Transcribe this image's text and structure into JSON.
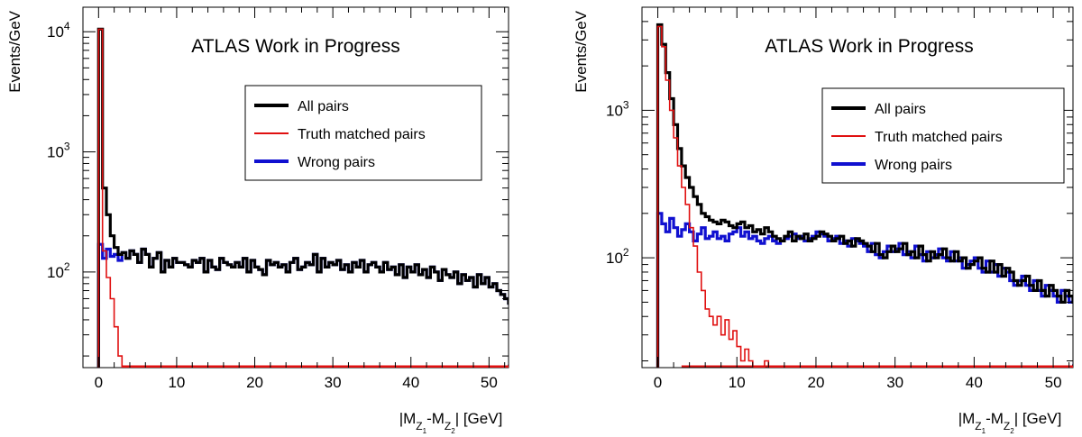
{
  "chart_data": [
    {
      "type": "step",
      "title": "ATLAS Work in Progress",
      "xlabel": "|M_{Z1}-M_{Z2}| [GeV]",
      "ylabel": "Events/GeV",
      "xlim": [
        -2,
        52.5
      ],
      "ylim": [
        16,
        16000
      ],
      "yscale": "log",
      "xticks": [
        0,
        10,
        20,
        30,
        40,
        50
      ],
      "yticks": [
        {
          "value": 100,
          "label": "10^2"
        },
        {
          "value": 1000,
          "label": "10^3"
        },
        {
          "value": 10000,
          "label": "10^4"
        }
      ],
      "bin_width": 0.5,
      "bin_start": 0,
      "legend_position": "upper-right",
      "series": [
        {
          "name": "All pairs",
          "color": "#000000",
          "values": [
            10500,
            500,
            300,
            200,
            160,
            140,
            145,
            130,
            150,
            140,
            120,
            155,
            140,
            110,
            130,
            145,
            100,
            125,
            110,
            130,
            120,
            120,
            115,
            110,
            125,
            120,
            130,
            100,
            125,
            110,
            105,
            130,
            120,
            115,
            110,
            120,
            110,
            130,
            100,
            125,
            110,
            105,
            95,
            125,
            115,
            120,
            110,
            115,
            100,
            120,
            130,
            105,
            110,
            120,
            115,
            140,
            100,
            130,
            110,
            120,
            115,
            125,
            105,
            115,
            100,
            120,
            110,
            125,
            100,
            115,
            120,
            110,
            100,
            120,
            105,
            110,
            95,
            115,
            90,
            110,
            100,
            115,
            95,
            105,
            90,
            110,
            100,
            85,
            105,
            95,
            90,
            100,
            80,
            95,
            85,
            90,
            75,
            95,
            80,
            90,
            75,
            80,
            70,
            65,
            60,
            55,
            40,
            45,
            40,
            50
          ]
        },
        {
          "name": "Truth matched pairs",
          "color": "#e01010",
          "values": [
            10500,
            150,
            90,
            60,
            35,
            20,
            0,
            0,
            0,
            0,
            0,
            0,
            0,
            0,
            0,
            0,
            0,
            0,
            0,
            0,
            0,
            0,
            0,
            0,
            0,
            0,
            0,
            0,
            0,
            0,
            0,
            0,
            0,
            0,
            0,
            0,
            0,
            0,
            0,
            0,
            0,
            0,
            0,
            0,
            0,
            0,
            0,
            0,
            0,
            0,
            0,
            0,
            0,
            0,
            0,
            0,
            0,
            0,
            0,
            0,
            0,
            0,
            0,
            0,
            0,
            0,
            0,
            0,
            0,
            0,
            0,
            0,
            0,
            0,
            0,
            0,
            0,
            0,
            0,
            0,
            0,
            0,
            0,
            0,
            0,
            0,
            0,
            0,
            0,
            0,
            0,
            0,
            0,
            0,
            0,
            0,
            0,
            0,
            0,
            0,
            0,
            0,
            0,
            0,
            0,
            0,
            0,
            0,
            0,
            0
          ]
        },
        {
          "name": "Wrong pairs",
          "color": "#1010d0",
          "values": [
            170,
            130,
            155,
            135,
            140,
            125,
            145,
            130,
            150,
            140,
            120,
            155,
            140,
            110,
            130,
            145,
            100,
            125,
            110,
            130,
            120,
            120,
            115,
            110,
            125,
            120,
            130,
            100,
            125,
            110,
            105,
            130,
            120,
            115,
            110,
            120,
            110,
            130,
            100,
            125,
            110,
            105,
            95,
            125,
            115,
            120,
            110,
            115,
            100,
            120,
            130,
            105,
            110,
            120,
            115,
            140,
            100,
            130,
            110,
            120,
            115,
            125,
            105,
            115,
            100,
            120,
            110,
            125,
            100,
            115,
            120,
            110,
            100,
            120,
            105,
            110,
            95,
            115,
            90,
            110,
            100,
            115,
            95,
            105,
            90,
            110,
            100,
            85,
            105,
            95,
            90,
            100,
            80,
            95,
            85,
            90,
            75,
            95,
            80,
            90,
            75,
            80,
            70,
            65,
            60,
            55,
            40,
            45,
            40,
            50
          ]
        }
      ]
    },
    {
      "type": "step",
      "title": "ATLAS Work in Progress",
      "xlabel": "|M_{Z1}-M_{Z2}| [GeV]",
      "ylabel": "Events/GeV",
      "xlim": [
        -2,
        52.5
      ],
      "ylim": [
        18,
        5000
      ],
      "yscale": "log",
      "xticks": [
        0,
        10,
        20,
        30,
        40,
        50
      ],
      "yticks": [
        {
          "value": 100,
          "label": "10^2"
        },
        {
          "value": 1000,
          "label": "10^3"
        }
      ],
      "bin_width": 0.5,
      "bin_start": 0,
      "legend_position": "upper-right",
      "series": [
        {
          "name": "All pairs",
          "color": "#000000",
          "values": [
            3800,
            2800,
            1800,
            1200,
            800,
            550,
            420,
            350,
            300,
            260,
            230,
            200,
            190,
            180,
            175,
            170,
            180,
            175,
            165,
            160,
            170,
            175,
            160,
            165,
            150,
            155,
            145,
            160,
            150,
            140,
            135,
            130,
            140,
            150,
            130,
            140,
            135,
            145,
            130,
            135,
            140,
            150,
            145,
            140,
            130,
            135,
            140,
            125,
            130,
            120,
            135,
            130,
            125,
            120,
            110,
            125,
            105,
            100,
            110,
            120,
            110,
            115,
            125,
            105,
            110,
            100,
            120,
            105,
            95,
            110,
            100,
            105,
            115,
            100,
            95,
            110,
            95,
            100,
            85,
            90,
            95,
            100,
            85,
            80,
            95,
            80,
            90,
            75,
            85,
            80,
            70,
            65,
            70,
            75,
            65,
            60,
            70,
            60,
            55,
            65,
            60,
            55,
            50,
            60,
            55,
            50,
            55,
            50,
            60,
            50
          ]
        },
        {
          "name": "Truth matched pairs",
          "color": "#e01010",
          "values": [
            3700,
            2700,
            1600,
            1000,
            650,
            420,
            300,
            230,
            160,
            120,
            80,
            60,
            45,
            40,
            35,
            40,
            30,
            38,
            28,
            32,
            25,
            20,
            24,
            20,
            18,
            0,
            0,
            20,
            0,
            0,
            0,
            0,
            0,
            0,
            0,
            0,
            0,
            0,
            0,
            0,
            0,
            0,
            0,
            0,
            0,
            0,
            0,
            0,
            0,
            0,
            0,
            0,
            0,
            0,
            0,
            0,
            0,
            0,
            0,
            0,
            0,
            0,
            0,
            0,
            0,
            0,
            0,
            0,
            0,
            0,
            0,
            0,
            0,
            0,
            0,
            0,
            0,
            0,
            0,
            0,
            0,
            0,
            0,
            0,
            0,
            0,
            0,
            0,
            0,
            0,
            0,
            0,
            0,
            0,
            0,
            0,
            0,
            0,
            0,
            0,
            0,
            0,
            0,
            0,
            0,
            0,
            0,
            0,
            0,
            0
          ]
        },
        {
          "name": "Wrong pairs",
          "color": "#1010d0",
          "values": [
            200,
            170,
            150,
            185,
            160,
            140,
            155,
            170,
            150,
            130,
            145,
            160,
            135,
            140,
            150,
            135,
            140,
            130,
            145,
            150,
            160,
            140,
            150,
            135,
            140,
            130,
            125,
            135,
            140,
            130,
            125,
            130,
            135,
            140,
            145,
            135,
            140,
            130,
            135,
            140,
            150,
            145,
            140,
            130,
            135,
            140,
            125,
            130,
            120,
            135,
            130,
            125,
            120,
            110,
            125,
            105,
            100,
            110,
            120,
            110,
            115,
            125,
            105,
            110,
            100,
            120,
            105,
            95,
            110,
            100,
            105,
            115,
            100,
            95,
            110,
            95,
            100,
            85,
            90,
            95,
            100,
            85,
            80,
            95,
            80,
            90,
            75,
            85,
            80,
            70,
            65,
            70,
            75,
            65,
            60,
            70,
            60,
            55,
            65,
            60,
            55,
            50,
            60,
            55,
            50,
            55,
            50,
            60,
            50,
            55
          ]
        }
      ]
    }
  ]
}
